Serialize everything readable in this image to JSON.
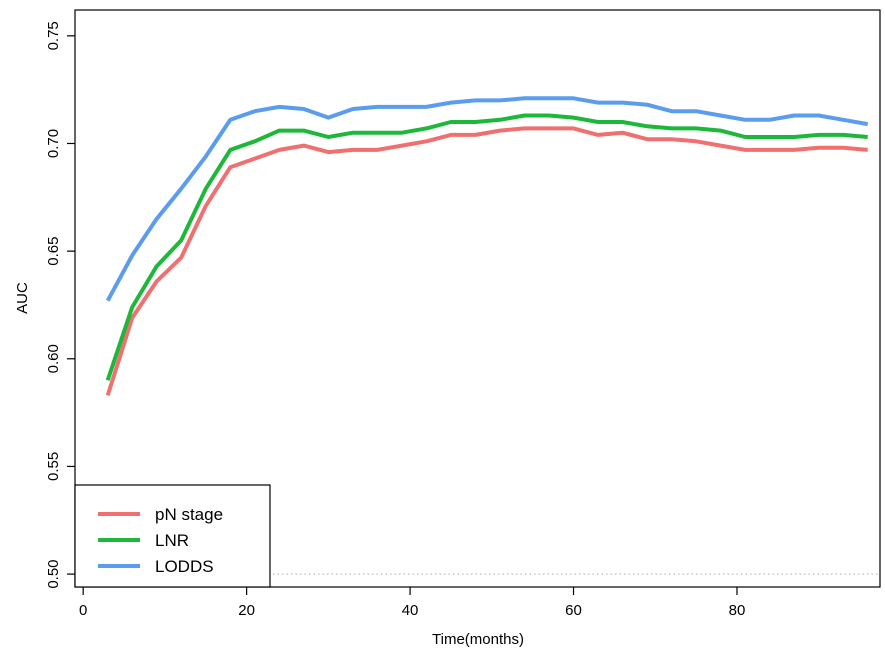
{
  "chart_data": {
    "type": "line",
    "xlabel": "Time(months)",
    "ylabel": "AUC",
    "xlim": [
      -1,
      97.5
    ],
    "ylim": [
      0.494,
      0.762
    ],
    "x_ticks": [
      0,
      20,
      40,
      60,
      80
    ],
    "y_ticks": [
      0.5,
      0.55,
      0.6,
      0.65,
      0.7,
      0.75
    ],
    "x_tick_labels": [
      "0",
      "20",
      "40",
      "60",
      "80"
    ],
    "y_tick_labels": [
      "0.50",
      "0.55",
      "0.60",
      "0.65",
      "0.70",
      "0.75"
    ],
    "reference_line": {
      "y": 0.5,
      "style": "dotted",
      "color": "#aaaaaa"
    },
    "grid": false,
    "legend_position": "bottom-left",
    "x": [
      3,
      6,
      9,
      12,
      15,
      18,
      21,
      24,
      27,
      30,
      33,
      36,
      39,
      42,
      45,
      48,
      51,
      54,
      57,
      60,
      63,
      66,
      69,
      72,
      75,
      78,
      81,
      84,
      87,
      90,
      93,
      96
    ],
    "series": [
      {
        "name": "pN stage",
        "color": "#F07070",
        "values": [
          0.583,
          0.619,
          0.636,
          0.647,
          0.671,
          0.689,
          0.693,
          0.697,
          0.699,
          0.696,
          0.697,
          0.697,
          0.699,
          0.701,
          0.704,
          0.704,
          0.706,
          0.707,
          0.707,
          0.707,
          0.704,
          0.705,
          0.702,
          0.702,
          0.701,
          0.699,
          0.697,
          0.697,
          0.697,
          0.698,
          0.698,
          0.697
        ]
      },
      {
        "name": "LNR",
        "color": "#1DB83A",
        "values": [
          0.59,
          0.624,
          0.643,
          0.655,
          0.679,
          0.697,
          0.701,
          0.706,
          0.706,
          0.703,
          0.705,
          0.705,
          0.705,
          0.707,
          0.71,
          0.71,
          0.711,
          0.713,
          0.713,
          0.712,
          0.71,
          0.71,
          0.708,
          0.707,
          0.707,
          0.706,
          0.703,
          0.703,
          0.703,
          0.704,
          0.704,
          0.703
        ]
      },
      {
        "name": "LODDS",
        "color": "#5B9CEF",
        "values": [
          0.627,
          0.648,
          0.665,
          0.679,
          0.694,
          0.711,
          0.715,
          0.717,
          0.716,
          0.712,
          0.716,
          0.717,
          0.717,
          0.717,
          0.719,
          0.72,
          0.72,
          0.721,
          0.721,
          0.721,
          0.719,
          0.719,
          0.718,
          0.715,
          0.715,
          0.713,
          0.711,
          0.711,
          0.713,
          0.713,
          0.711,
          0.709
        ]
      }
    ]
  }
}
